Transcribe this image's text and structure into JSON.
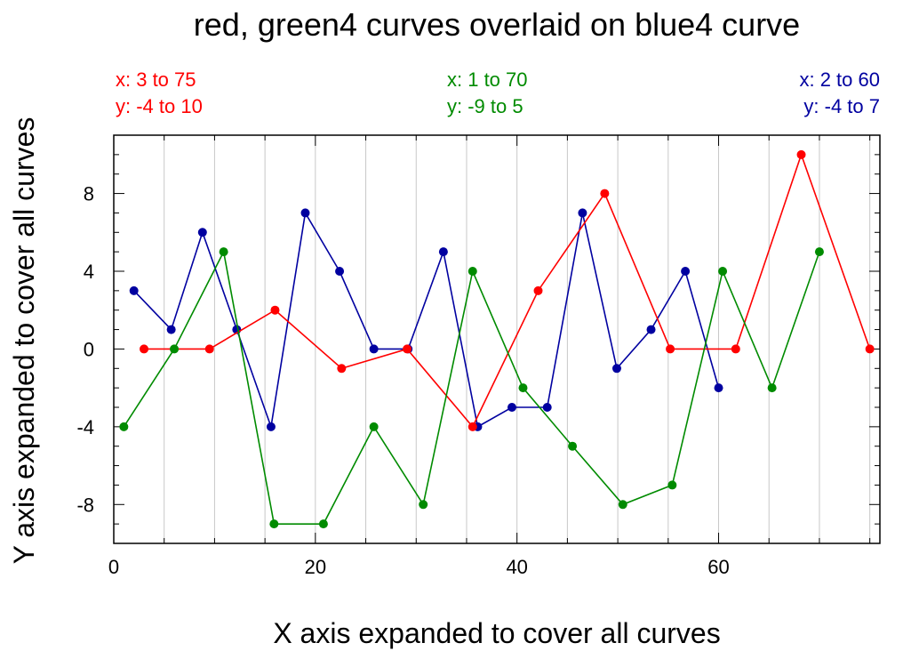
{
  "chart_data": {
    "type": "line",
    "title": "red, green4 curves overlaid on blue4 curve",
    "xlabel": "X axis expanded to cover all curves",
    "ylabel": "Y axis expanded to cover all curves",
    "xlim": [
      0,
      76
    ],
    "ylim": [
      -10,
      11
    ],
    "x_ticks": [
      0,
      20,
      40,
      60
    ],
    "y_ticks": [
      -8,
      -4,
      0,
      4,
      8
    ],
    "grid": "vertical",
    "series": [
      {
        "color": "#0000a0",
        "x": [
          2,
          5.7,
          8.8,
          12.2,
          15.6,
          19,
          22.4,
          25.8,
          29.2,
          32.7,
          36.1,
          39.5,
          43,
          46.5,
          49.9,
          53.3,
          56.7,
          60
        ],
        "y": [
          3,
          1,
          6,
          1,
          -4,
          7,
          4,
          0,
          0,
          5,
          -4,
          -3,
          -3,
          7,
          -1,
          1,
          4,
          -2
        ],
        "range_x": "x: 2 to 60",
        "range_y": "y: -4 to 7"
      },
      {
        "color": "#ff0000",
        "x": [
          3,
          9.5,
          16,
          22.6,
          29.1,
          35.6,
          42.1,
          48.7,
          55.2,
          61.7,
          68.2,
          75
        ],
        "y": [
          0,
          0,
          2,
          -1,
          0,
          -4,
          3,
          8,
          0,
          0,
          10,
          0
        ],
        "range_x": "x: 3 to 75",
        "range_y": "y: -4 to 10"
      },
      {
        "color": "#008b00",
        "x": [
          1,
          6,
          10.9,
          15.9,
          20.8,
          25.8,
          30.7,
          35.6,
          40.6,
          45.5,
          50.5,
          55.4,
          60.4,
          65.3,
          70
        ],
        "y": [
          -4,
          0,
          5,
          -9,
          -9,
          -4,
          -8,
          4,
          -2,
          -5,
          -8,
          -7,
          4,
          -2,
          5
        ],
        "range_x": "x: 1 to 70",
        "range_y": "y: -9 to 5"
      }
    ]
  }
}
